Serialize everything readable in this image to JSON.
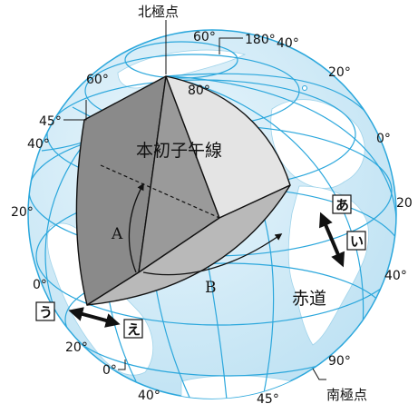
{
  "labels": {
    "north_pole": "北極点",
    "south_pole": "南極点",
    "prime_meridian": "本初子午線",
    "equator": "赤道",
    "angle_a": "A",
    "angle_b": "B"
  },
  "markers": {
    "a": "あ",
    "i": "い",
    "u": "う",
    "e": "え"
  },
  "degree_labels": {
    "lon_60_top": "60°",
    "lon_180": "180°",
    "lon_40_top": "40°",
    "lat_80": "80°",
    "lat_60_left": "60°",
    "lon_20_right": "20°",
    "lat_45": "45°",
    "lat_40_left": "40°",
    "lon_0_right": "0°",
    "lat_20_left": "20°",
    "lon_20_far_right": "20",
    "lat_0_left": "0°",
    "lon_40_right": "40°",
    "lat_20_bottom": "20°",
    "lon_90": "90°",
    "lat_0_bottom": "0°",
    "lon_40_bottom": "40°",
    "lon_45_bottom": "45°"
  },
  "colors": {
    "ocean": "#d5ecf7",
    "land": "#ffffff",
    "grid": "#2ba7dc",
    "face_dark": "#8a8a8a",
    "face_light": "#e4e4e4",
    "face_mid": "#b9b9b9",
    "outline": "#111111"
  }
}
